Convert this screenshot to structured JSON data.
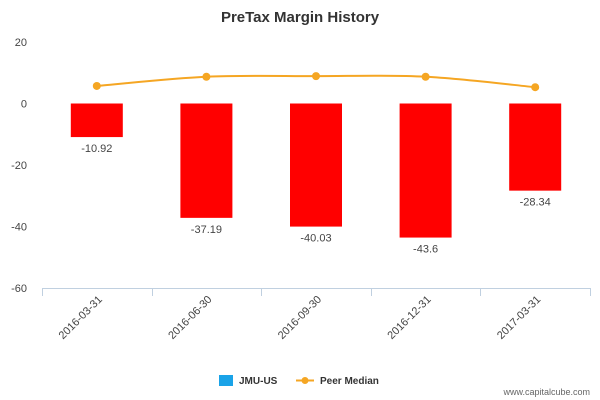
{
  "colors": {
    "bar": "#ff0000",
    "line": "#f5a623",
    "legend_bar_swatch": "#1aa3e8",
    "axis": "#c0d0e0",
    "grid": "#e6e6e6"
  },
  "footer": {
    "text": "www.capitalcube.com"
  },
  "chart_data": {
    "type": "bar",
    "title": "PreTax Margin History",
    "xlabel": "",
    "ylabel": "",
    "categories": [
      "2016-03-31",
      "2016-06-30",
      "2016-09-30",
      "2016-12-31",
      "2017-03-31"
    ],
    "ylim": [
      -60,
      20
    ],
    "yticks": [
      20,
      0,
      -20,
      -40,
      -60
    ],
    "grid": false,
    "legend_position": "bottom-center",
    "series": [
      {
        "name": "JMU-US",
        "type": "bar",
        "values": [
          -10.92,
          -37.19,
          -40.03,
          -43.6,
          -28.34
        ],
        "labels": [
          "-10.92",
          "-37.19",
          "-40.03",
          "-43.6",
          "-28.34"
        ]
      },
      {
        "name": "Peer Median",
        "type": "line",
        "values": [
          5.7,
          8.7,
          8.9,
          8.7,
          5.3
        ]
      }
    ]
  }
}
